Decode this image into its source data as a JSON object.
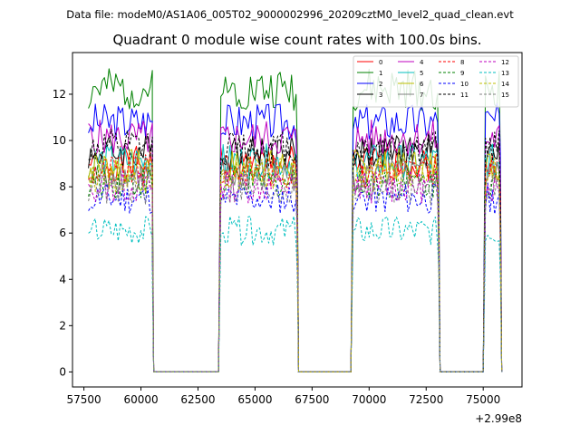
{
  "chart_data": {
    "type": "line",
    "suptitle": "Data file: modeM0/AS1A06_005T02_9000002996_20209cztM0_level2_quad_clean.evt",
    "title": "Quadrant 0 module wise count rates with 100.0s bins.",
    "xlabel": "",
    "ylabel": "",
    "x_offset_label": "+2.99e8",
    "xlim": [
      57000,
      76700
    ],
    "ylim": [
      -0.65,
      13.8
    ],
    "xticks": [
      57500,
      60000,
      62500,
      65000,
      67500,
      70000,
      72500,
      75000
    ],
    "xtick_labels": [
      "57500",
      "60000",
      "62500",
      "65000",
      "67500",
      "70000",
      "72500",
      "75000"
    ],
    "yticks": [
      0,
      2,
      4,
      6,
      8,
      10,
      12
    ],
    "ytick_labels": [
      "0",
      "2",
      "4",
      "6",
      "8",
      "10",
      "12"
    ],
    "legend_position": "upper right",
    "legend_columns": 4,
    "bin_size_s": 100,
    "segments": [
      {
        "start": 57700,
        "end": 60500
      },
      {
        "start": 63500,
        "end": 66850
      },
      {
        "start": 69300,
        "end": 73050
      },
      {
        "start": 75050,
        "end": 75750
      }
    ],
    "gap_value": 0,
    "series": [
      {
        "name": "0",
        "color": "#ff0000",
        "style": "solid",
        "level": 9.0
      },
      {
        "name": "1",
        "color": "#008000",
        "style": "solid",
        "level": 12.2
      },
      {
        "name": "2",
        "color": "#0000ff",
        "style": "solid",
        "level": 10.8
      },
      {
        "name": "3",
        "color": "#000000",
        "style": "solid",
        "level": 9.5
      },
      {
        "name": "4",
        "color": "#bf00bf",
        "style": "solid",
        "level": 10.1
      },
      {
        "name": "5",
        "color": "#00bfbf",
        "style": "solid",
        "level": 9.1
      },
      {
        "name": "6",
        "color": "#bfbf00",
        "style": "solid",
        "level": 8.9
      },
      {
        "name": "7",
        "color": "#808080",
        "style": "solid",
        "level": 8.5
      },
      {
        "name": "8",
        "color": "#ff0000",
        "style": "dashed",
        "level": 8.7
      },
      {
        "name": "9",
        "color": "#008000",
        "style": "dashed",
        "level": 8.2
      },
      {
        "name": "10",
        "color": "#0000ff",
        "style": "dashed",
        "level": 7.5
      },
      {
        "name": "11",
        "color": "#000000",
        "style": "dashed",
        "level": 9.7
      },
      {
        "name": "12",
        "color": "#bf00bf",
        "style": "dashed",
        "level": 8.0
      },
      {
        "name": "13",
        "color": "#00bfbf",
        "style": "dashed",
        "level": 6.1
      },
      {
        "name": "14",
        "color": "#bfbf00",
        "style": "dashed",
        "level": 8.5
      },
      {
        "name": "15",
        "color": "#808080",
        "style": "dashed",
        "level": 7.9
      }
    ]
  }
}
